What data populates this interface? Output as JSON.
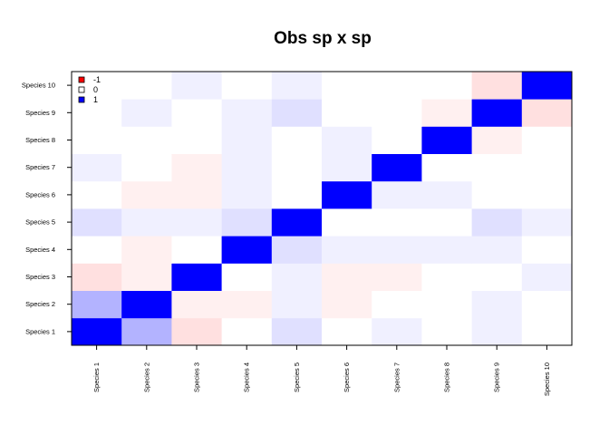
{
  "chart_data": {
    "type": "heatmap",
    "title": "Obs sp x sp",
    "xlabel": "",
    "ylabel": "",
    "x_categories": [
      "Species 1",
      "Species 2",
      "Species 3",
      "Species 4",
      "Species 5",
      "Species 6",
      "Species 7",
      "Species 8",
      "Species 9",
      "Species 10"
    ],
    "y_categories": [
      "Species 1",
      "Species 2",
      "Species 3",
      "Species 4",
      "Species 5",
      "Species 6",
      "Species 7",
      "Species 8",
      "Species 9",
      "Species 10"
    ],
    "value_range": [
      -1,
      1
    ],
    "color_scale": {
      "neg": "#ff0000",
      "zero": "#ffffff",
      "pos": "#0000ff"
    },
    "legend": {
      "placement": "top-left",
      "entries": [
        {
          "label": "-1",
          "color": "#ff0000"
        },
        {
          "label": "0",
          "color": "#ffffff"
        },
        {
          "label": "1",
          "color": "#0000ff"
        }
      ]
    },
    "matrix": [
      [
        1,
        0.3,
        -0.12,
        0,
        0.12,
        0,
        0.06,
        0,
        0.06,
        0
      ],
      [
        0.3,
        1,
        -0.06,
        -0.06,
        0.06,
        -0.06,
        0,
        0,
        0.06,
        0
      ],
      [
        -0.12,
        -0.06,
        1,
        0,
        0.06,
        -0.06,
        -0.06,
        0,
        0,
        0.06
      ],
      [
        0,
        -0.06,
        0,
        1,
        0.12,
        0.06,
        0.06,
        0.06,
        0.06,
        0
      ],
      [
        0.12,
        0.06,
        0.06,
        0.12,
        1,
        0,
        0,
        0,
        0.12,
        0.06
      ],
      [
        0,
        -0.06,
        -0.06,
        0.06,
        0,
        1,
        0.06,
        0.06,
        0,
        0
      ],
      [
        0.06,
        0,
        -0.06,
        0.06,
        0,
        0.06,
        1,
        0,
        0,
        0
      ],
      [
        0,
        0,
        0,
        0.06,
        0,
        0.06,
        0,
        1,
        -0.06,
        0
      ],
      [
        0,
        0.06,
        0,
        0.06,
        0.12,
        0,
        0,
        -0.06,
        1,
        -0.12
      ],
      [
        0,
        0,
        0.06,
        0,
        0.06,
        0,
        0,
        0,
        -0.12,
        1
      ]
    ]
  }
}
